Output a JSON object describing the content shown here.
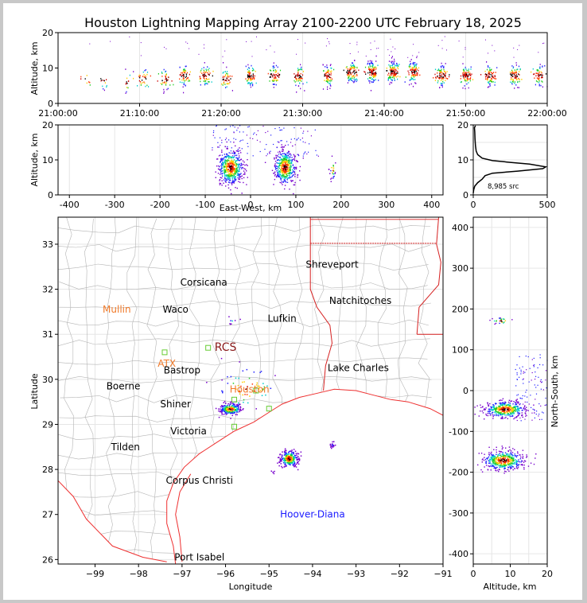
{
  "title": "Houston Lightning Mapping Array 2100-2200 UTC February 18, 2025",
  "colors": {
    "state_borders": "#d62020",
    "county_lines": "#b4b4b4",
    "coast": "#ee3030",
    "grid": "#e6e6e6",
    "station_label_orange": "#f07a2a",
    "station_label_blue": "#1a1aff",
    "station_marker": "#66cc33"
  },
  "chart_data": [
    {
      "id": "time_altitude",
      "type": "scatter",
      "xlabel": "",
      "ylabel": "Altitude, km",
      "x_ticks": [
        "21:00:00",
        "21:10:00",
        "21:20:00",
        "21:30:00",
        "21:40:00",
        "21:50:00",
        "22:00:00"
      ],
      "x_range_minutes": [
        0,
        60
      ],
      "ylim": [
        0,
        20
      ],
      "y_ticks": [
        0,
        10,
        20
      ],
      "clusters": [
        {
          "t": 3.5,
          "alt": 7,
          "n": 8
        },
        {
          "t": 5.5,
          "alt": 7,
          "n": 12
        },
        {
          "t": 8.5,
          "alt": 6,
          "n": 15
        },
        {
          "t": 10.5,
          "alt": 7,
          "n": 30
        },
        {
          "t": 13,
          "alt": 7,
          "n": 40
        },
        {
          "t": 15.5,
          "alt": 8,
          "n": 60
        },
        {
          "t": 18,
          "alt": 8,
          "n": 60
        },
        {
          "t": 20.5,
          "alt": 7,
          "n": 50
        },
        {
          "t": 23.5,
          "alt": 8,
          "n": 70
        },
        {
          "t": 26.5,
          "alt": 8,
          "n": 60
        },
        {
          "t": 29.5,
          "alt": 8,
          "n": 60
        },
        {
          "t": 33,
          "alt": 8,
          "n": 70
        },
        {
          "t": 36,
          "alt": 9,
          "n": 100
        },
        {
          "t": 38.5,
          "alt": 9,
          "n": 110
        },
        {
          "t": 41,
          "alt": 9,
          "n": 120
        },
        {
          "t": 43.5,
          "alt": 9,
          "n": 100
        },
        {
          "t": 47,
          "alt": 8,
          "n": 90
        },
        {
          "t": 50,
          "alt": 8,
          "n": 80
        },
        {
          "t": 53,
          "alt": 8,
          "n": 80
        },
        {
          "t": 56,
          "alt": 8,
          "n": 80
        },
        {
          "t": 59,
          "alt": 8,
          "n": 60
        }
      ]
    },
    {
      "id": "eastwest_altitude",
      "type": "scatter",
      "xlabel": "East-West, km",
      "ylabel": "Altitude, km",
      "xlim": [
        -425,
        425
      ],
      "x_ticks": [
        -400,
        -300,
        -200,
        -100,
        0,
        100,
        200,
        300,
        400
      ],
      "ylim": [
        0,
        20
      ],
      "y_ticks": [
        0,
        10,
        20
      ],
      "clusters": [
        {
          "x": -45,
          "alt": 8,
          "sx": 14,
          "sa": 2.5,
          "n": 500
        },
        {
          "x": 75,
          "alt": 8,
          "sx": 12,
          "sa": 2.5,
          "n": 450
        },
        {
          "x": 180,
          "alt": 7.5,
          "sx": 3,
          "sa": 1.5,
          "n": 25
        }
      ]
    },
    {
      "id": "altitude_histogram",
      "type": "line",
      "xlim": [
        0,
        500
      ],
      "x_ticks": [
        0,
        500
      ],
      "ylim": [
        0,
        20
      ],
      "y_ticks": [
        0,
        10,
        20
      ],
      "annotation": "8,985 src",
      "points": [
        [
          0,
          0.5
        ],
        [
          3,
          1.5
        ],
        [
          10,
          2.5
        ],
        [
          30,
          3.5
        ],
        [
          60,
          4.5
        ],
        [
          80,
          5.5
        ],
        [
          130,
          6.2
        ],
        [
          300,
          6.8
        ],
        [
          470,
          7.5
        ],
        [
          490,
          8
        ],
        [
          380,
          8.8
        ],
        [
          250,
          9.3
        ],
        [
          130,
          9.8
        ],
        [
          60,
          10.5
        ],
        [
          30,
          11.5
        ],
        [
          20,
          12.5
        ],
        [
          15,
          14
        ],
        [
          12,
          16
        ],
        [
          10,
          18
        ],
        [
          8,
          19.2
        ],
        [
          15,
          19.8
        ]
      ]
    },
    {
      "id": "plan_view",
      "type": "scatter",
      "xlabel": "Longitude",
      "ylabel": "Latitude",
      "xlim": [
        -99.85,
        -91
      ],
      "x_ticks": [
        -99,
        -98,
        -97,
        -96,
        -95,
        -94,
        -93,
        -92,
        -91
      ],
      "ylim": [
        25.9,
        33.6
      ],
      "y_ticks": [
        26,
        27,
        28,
        29,
        30,
        31,
        32,
        33
      ],
      "clusters": [
        {
          "lon": -95.9,
          "lat": 29.35,
          "slon": 0.12,
          "slat": 0.06,
          "n": 220
        },
        {
          "lon": -94.55,
          "lat": 28.25,
          "slon": 0.1,
          "slat": 0.09,
          "n": 260
        },
        {
          "lon": -93.55,
          "lat": 28.55,
          "slon": 0.03,
          "slat": 0.04,
          "n": 20
        },
        {
          "lon": -95.5,
          "lat": 29.8,
          "slon": 0.35,
          "slat": 0.25,
          "n": 60
        },
        {
          "lon": -95.85,
          "lat": 31.3,
          "slon": 0.1,
          "slat": 0.05,
          "n": 8
        },
        {
          "lon": -94.9,
          "lat": 27.95,
          "slon": 0.03,
          "slat": 0.02,
          "n": 5
        }
      ],
      "cities": [
        {
          "name": "Shreveport",
          "lon": -93.55,
          "lat": 32.55,
          "color": "black"
        },
        {
          "name": "Corsicana",
          "lon": -96.5,
          "lat": 32.15,
          "color": "black"
        },
        {
          "name": "Natchitoches",
          "lon": -92.9,
          "lat": 31.75,
          "color": "black"
        },
        {
          "name": "Mullin",
          "lon": -98.5,
          "lat": 31.55,
          "color": "orange"
        },
        {
          "name": "Waco",
          "lon": -97.15,
          "lat": 31.55,
          "color": "black"
        },
        {
          "name": "Lufkin",
          "lon": -94.7,
          "lat": 31.35,
          "color": "black"
        },
        {
          "name": "RCS",
          "lon": -96.0,
          "lat": 30.7,
          "color": "darkred"
        },
        {
          "name": "ATX",
          "lon": -97.35,
          "lat": 30.35,
          "color": "orange"
        },
        {
          "name": "Bastrop",
          "lon": -97.0,
          "lat": 30.2,
          "color": "black"
        },
        {
          "name": "Lake Charles",
          "lon": -92.95,
          "lat": 30.25,
          "color": "black"
        },
        {
          "name": "Boerne",
          "lon": -98.35,
          "lat": 29.85,
          "color": "black"
        },
        {
          "name": "Houston",
          "lon": -95.45,
          "lat": 29.78,
          "color": "orange"
        },
        {
          "name": "Shiner",
          "lon": -97.15,
          "lat": 29.45,
          "color": "black"
        },
        {
          "name": "Victoria",
          "lon": -96.85,
          "lat": 28.85,
          "color": "black"
        },
        {
          "name": "Tilden",
          "lon": -98.3,
          "lat": 28.5,
          "color": "black"
        },
        {
          "name": "Corpus Christi",
          "lon": -96.6,
          "lat": 27.75,
          "color": "black"
        },
        {
          "name": "Hoover-Diana",
          "lon": -94.0,
          "lat": 27.0,
          "color": "blue"
        },
        {
          "name": "Port Isabel",
          "lon": -96.6,
          "lat": 26.05,
          "color": "black"
        }
      ],
      "stations": [
        {
          "lon": -97.4,
          "lat": 30.6
        },
        {
          "lon": -96.4,
          "lat": 30.7
        },
        {
          "lon": -95.8,
          "lat": 29.55
        },
        {
          "lon": -95.3,
          "lat": 29.75
        },
        {
          "lon": -95.0,
          "lat": 29.35
        },
        {
          "lon": -95.8,
          "lat": 28.95
        }
      ]
    },
    {
      "id": "altitude_northsouth",
      "type": "scatter",
      "xlabel": "Altitude, km",
      "ylabel": "North-South, km",
      "xlim": [
        0,
        20
      ],
      "x_ticks": [
        0,
        10,
        20
      ],
      "ylim": [
        -425,
        425
      ],
      "y_ticks": [
        -400,
        -300,
        -200,
        -100,
        0,
        100,
        200,
        300,
        400
      ],
      "clusters": [
        {
          "alt": 8.5,
          "y": -45,
          "sa": 2.8,
          "sy": 10,
          "n": 420
        },
        {
          "alt": 8,
          "y": -170,
          "sa": 2.8,
          "sy": 12,
          "n": 450
        },
        {
          "alt": 7.5,
          "y": 172,
          "sa": 1.5,
          "sy": 4,
          "n": 25
        }
      ]
    }
  ]
}
